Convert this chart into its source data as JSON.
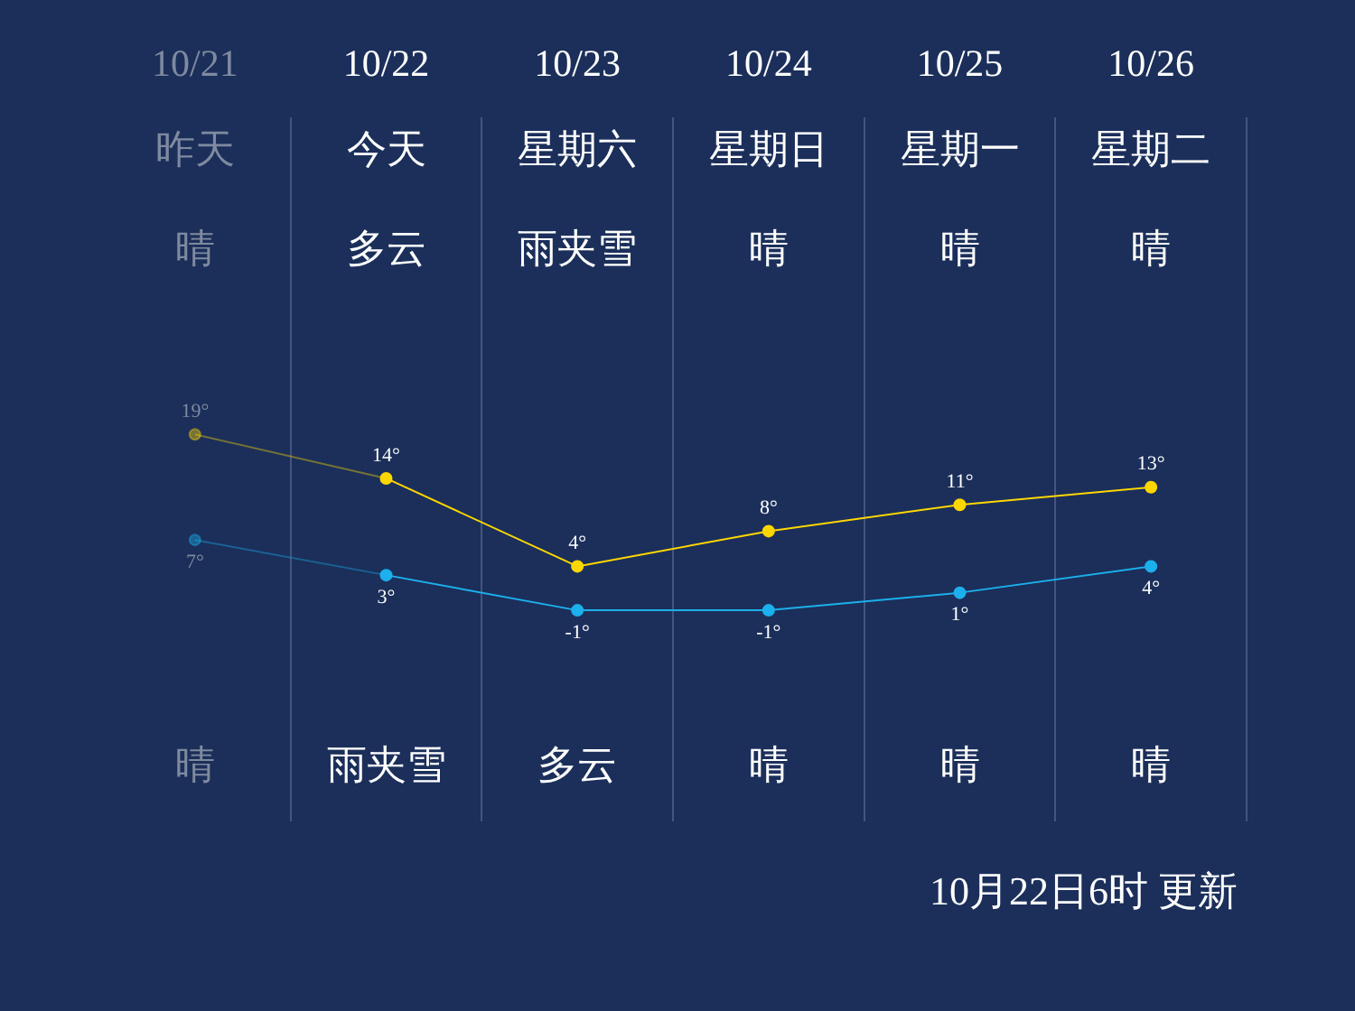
{
  "chart_data": {
    "type": "line",
    "categories": [
      "10/21",
      "10/22",
      "10/23",
      "10/24",
      "10/25",
      "10/26"
    ],
    "series": [
      {
        "color": "#ffd700",
        "values": [
          19,
          14,
          4,
          8,
          11,
          13
        ],
        "value_labels": [
          "19°",
          "14°",
          "4°",
          "8°",
          "11°",
          "13°"
        ]
      },
      {
        "color": "#1cb0ec",
        "values": [
          7,
          3,
          -1,
          -1,
          1,
          4
        ],
        "value_labels": [
          "7°",
          "3°",
          "-1°",
          "-1°",
          "1°",
          "4°"
        ]
      }
    ],
    "annotations": [
      "昨天",
      "今天",
      "星期六",
      "星期日",
      "星期一",
      "星期二",
      "晴",
      "多云",
      "雨夹雪",
      "晴",
      "晴",
      "晴",
      "晴",
      "雨夹雪",
      "多云",
      "晴",
      "晴",
      "晴",
      "10月22日6时 更新"
    ],
    "grid": "x",
    "legend": false,
    "marker": "circle",
    "line_style": "solid"
  }
}
